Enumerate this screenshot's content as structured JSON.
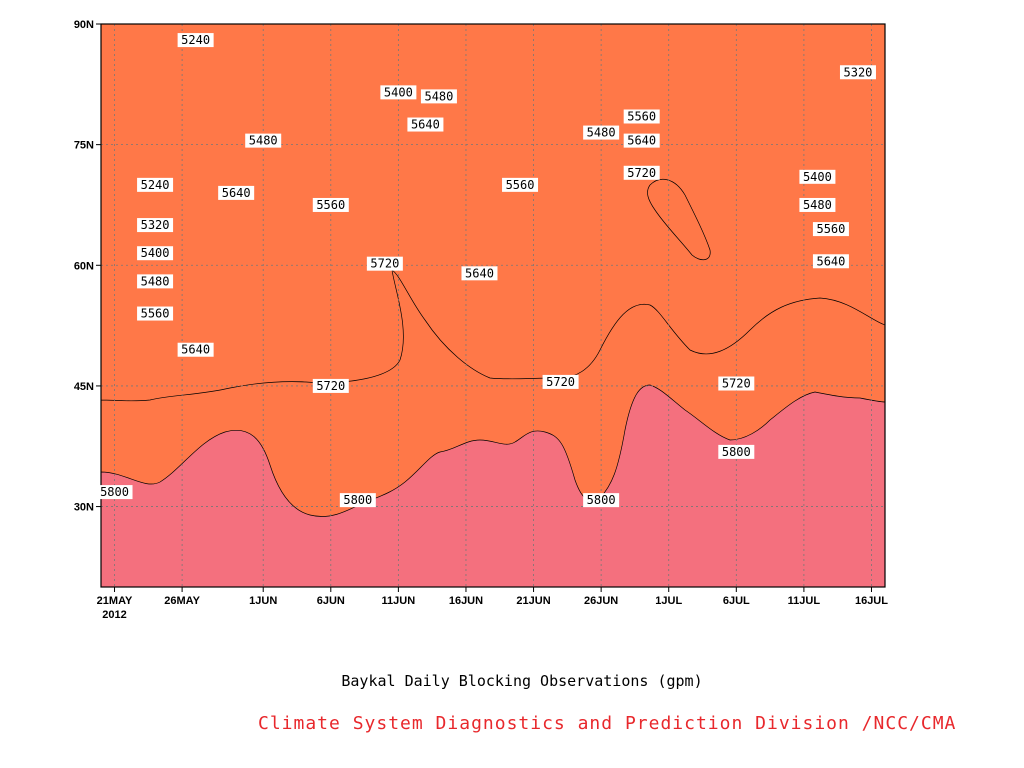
{
  "chart_data": {
    "type": "contour",
    "title": "Baykal Daily Blocking Observations (gpm)",
    "credit": "Climate System Diagnostics and Prediction Division /NCC/CMA",
    "x_ticks": [
      "21MAY",
      "26MAY",
      "1JUN",
      "6JUN",
      "11JUN",
      "16JUN",
      "21JUN",
      "26JUN",
      "1JUL",
      "6JUL",
      "11JUL",
      "16JUL"
    ],
    "x_year_label": "2012",
    "y_ticks": [
      "30N",
      "45N",
      "60N",
      "75N",
      "90N"
    ],
    "ylim": [
      20,
      90
    ],
    "xlim": [
      "20MAY2012",
      "17JUL2012"
    ],
    "contour_levels": [
      5240,
      5320,
      5400,
      5480,
      5560,
      5640,
      5720,
      5800
    ],
    "band_colors": [
      "#1a1ad8",
      "#4a4ae8",
      "#5a8de0",
      "#60bff8",
      "#ffff80",
      "#ffe0a0",
      "#ffa070",
      "#ff7848",
      "#f4707e"
    ],
    "contour_labels": [
      {
        "value": "5240",
        "date": "27MAY",
        "lat": 88
      },
      {
        "value": "5240",
        "date": "24MAY",
        "lat": 70
      },
      {
        "value": "5320",
        "date": "24MAY",
        "lat": 65
      },
      {
        "value": "5400",
        "date": "24MAY",
        "lat": 61.5
      },
      {
        "value": "5480",
        "date": "24MAY",
        "lat": 58
      },
      {
        "value": "5560",
        "date": "24MAY",
        "lat": 54
      },
      {
        "value": "5640",
        "date": "27MAY",
        "lat": 49.5
      },
      {
        "value": "5480",
        "date": "1JUN",
        "lat": 75.5
      },
      {
        "value": "5640",
        "date": "30MAY",
        "lat": 69
      },
      {
        "value": "5560",
        "date": "6JUN",
        "lat": 67.5
      },
      {
        "value": "5400",
        "date": "11JUN",
        "lat": 81.5
      },
      {
        "value": "5480",
        "date": "14JUN",
        "lat": 81
      },
      {
        "value": "5640",
        "date": "13JUN",
        "lat": 77.5
      },
      {
        "value": "5720",
        "date": "10JUN",
        "lat": 60.2
      },
      {
        "value": "5640",
        "date": "17JUN",
        "lat": 59
      },
      {
        "value": "5560",
        "date": "20JUN",
        "lat": 70
      },
      {
        "value": "5480",
        "date": "26JUN",
        "lat": 76.5
      },
      {
        "value": "5560",
        "date": "29JUN",
        "lat": 78.5
      },
      {
        "value": "5640",
        "date": "29JUN",
        "lat": 75.5
      },
      {
        "value": "5720",
        "date": "29JUN",
        "lat": 71.5
      },
      {
        "value": "5720",
        "date": "23JUN",
        "lat": 45.5
      },
      {
        "value": "5720",
        "date": "6JUN",
        "lat": 45
      },
      {
        "value": "5720",
        "date": "6JUL",
        "lat": 45.3
      },
      {
        "value": "5800",
        "date": "21MAY",
        "lat": 31.8
      },
      {
        "value": "5800",
        "date": "8JUN",
        "lat": 30.8
      },
      {
        "value": "5800",
        "date": "26JUN",
        "lat": 30.8
      },
      {
        "value": "5800",
        "date": "6JUL",
        "lat": 36.8
      },
      {
        "value": "5400",
        "date": "12JUL",
        "lat": 71
      },
      {
        "value": "5480",
        "date": "12JUL",
        "lat": 67.5
      },
      {
        "value": "5560",
        "date": "13JUL",
        "lat": 64.5
      },
      {
        "value": "5640",
        "date": "13JUL",
        "lat": 60.5
      },
      {
        "value": "5320",
        "date": "15JUL",
        "lat": 84
      }
    ]
  }
}
